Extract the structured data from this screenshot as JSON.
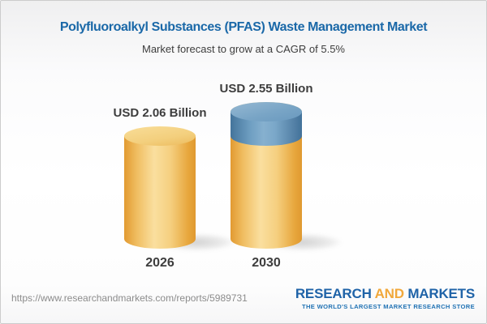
{
  "chart_data": {
    "type": "bar",
    "subtype": "3d-cylinder-infographic",
    "title": "Polyfluoroalkyl Substances (PFAS) Waste Management Market",
    "subtitle": "Market forecast to grow at a CAGR of 5.5%",
    "cagr_percent": 5.5,
    "unit": "USD Billion",
    "categories": [
      "2026",
      "2030"
    ],
    "values": [
      2.06,
      2.55
    ],
    "bar_labels": [
      "USD 2.06 Billion",
      "USD 2.55 Billion"
    ],
    "legend": "off",
    "grid": "off",
    "axes": "hidden",
    "colors": {
      "cylinder_gold": "#f3c873",
      "growth_cap_blue": "#6d9ec2",
      "title_blue": "#1a68a8",
      "label_dark": "#3d3d3d"
    },
    "growth_cap": {
      "on_category": "2030",
      "represents": "increment above 2026 value"
    }
  },
  "footer": {
    "url": "https://www.researchandmarkets.com/reports/5989731",
    "logo": {
      "word1": "RESEARCH",
      "word2": "AND",
      "word3": "MARKETS",
      "tagline": "THE WORLD'S LARGEST MARKET RESEARCH STORE",
      "blue": "#1f63a8",
      "gold": "#f1a83b"
    }
  }
}
